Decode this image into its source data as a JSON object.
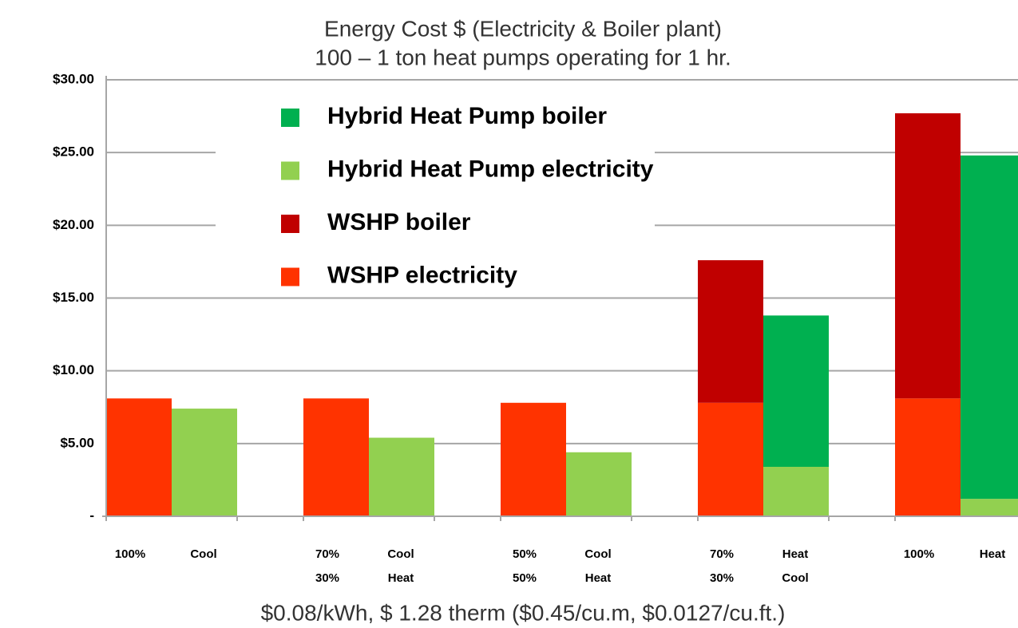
{
  "chart_data": {
    "type": "bar",
    "title": [
      "Energy Cost $ (Electricity & Boiler plant)",
      "100 – 1 ton heat pumps operating for 1 hr."
    ],
    "xlabel": "$0.08/kWh, $ 1.28 therm ($0.45/cu.m, $0.0127/cu.ft.)",
    "categories": [
      {
        "share": [
          "100%"
        ],
        "mode": [
          "Cool"
        ]
      },
      {
        "share": [
          "70%",
          "30%"
        ],
        "mode": [
          "Cool",
          "Heat"
        ]
      },
      {
        "share": [
          "50%",
          "50%"
        ],
        "mode": [
          "Cool",
          "Heat"
        ]
      },
      {
        "share": [
          "70%",
          "30%"
        ],
        "mode": [
          "Heat",
          "Cool"
        ]
      },
      {
        "share": [
          "100%"
        ],
        "mode": [
          "Heat"
        ]
      }
    ],
    "stacks": [
      [
        {
          "name": "WSHP electricity",
          "color": "#ff3300",
          "values": [
            8.1,
            8.1,
            7.8,
            7.8,
            8.1
          ]
        },
        {
          "name": "WSHP boiler",
          "color": "#c00000",
          "values": [
            0,
            0,
            0,
            9.8,
            19.6
          ]
        }
      ],
      [
        {
          "name": "Hybrid Heat Pump electricity",
          "color": "#92d050",
          "values": [
            7.4,
            5.4,
            4.4,
            3.4,
            1.2
          ]
        },
        {
          "name": "Hybrid Heat Pump boiler",
          "color": "#00b050",
          "values": [
            0,
            0,
            0,
            10.4,
            23.6
          ]
        }
      ]
    ],
    "ylim": [
      0,
      30
    ],
    "yticks": [
      {
        "value": 0,
        "label": "-"
      },
      {
        "value": 5,
        "label": "$5.00"
      },
      {
        "value": 10,
        "label": "$10.00"
      },
      {
        "value": 15,
        "label": "$15.00"
      },
      {
        "value": 20,
        "label": "$20.00"
      },
      {
        "value": 25,
        "label": "$25.00"
      },
      {
        "value": 30,
        "label": "$30.00"
      }
    ],
    "grid": true
  }
}
